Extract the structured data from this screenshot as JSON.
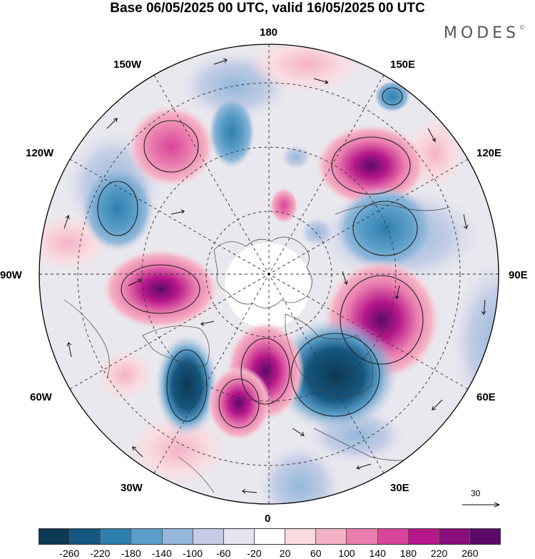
{
  "title": "Base 06/05/2025 00 UTC, valid 16/05/2025 00 UTC",
  "brand": "MODES",
  "brand_mark": "©",
  "longitude_labels": {
    "lon_180": "180",
    "lon_150E": "150E",
    "lon_120E": "120E",
    "lon_90E": "90E",
    "lon_60E": "60E",
    "lon_30E": "30E",
    "lon_0": "0",
    "lon_30W": "30W",
    "lon_60W": "60W",
    "lon_90W": "90W",
    "lon_120W": "120W",
    "lon_150W": "150W"
  },
  "reference_vector": "30",
  "colorbar": {
    "colors": [
      "#0d3954",
      "#15577f",
      "#2f7fae",
      "#5b9ec9",
      "#93b8da",
      "#c4cde5",
      "#e5e4f0",
      "#ffffff",
      "#f9dbe0",
      "#f4b2c6",
      "#ea7cae",
      "#d8459a",
      "#b6178a",
      "#890f7a",
      "#5b0a6a"
    ],
    "ticks": [
      "-260",
      "-220",
      "-180",
      "-140",
      "-100",
      "-60",
      "-20",
      "20",
      "60",
      "100",
      "140",
      "180",
      "220",
      "260"
    ]
  }
}
